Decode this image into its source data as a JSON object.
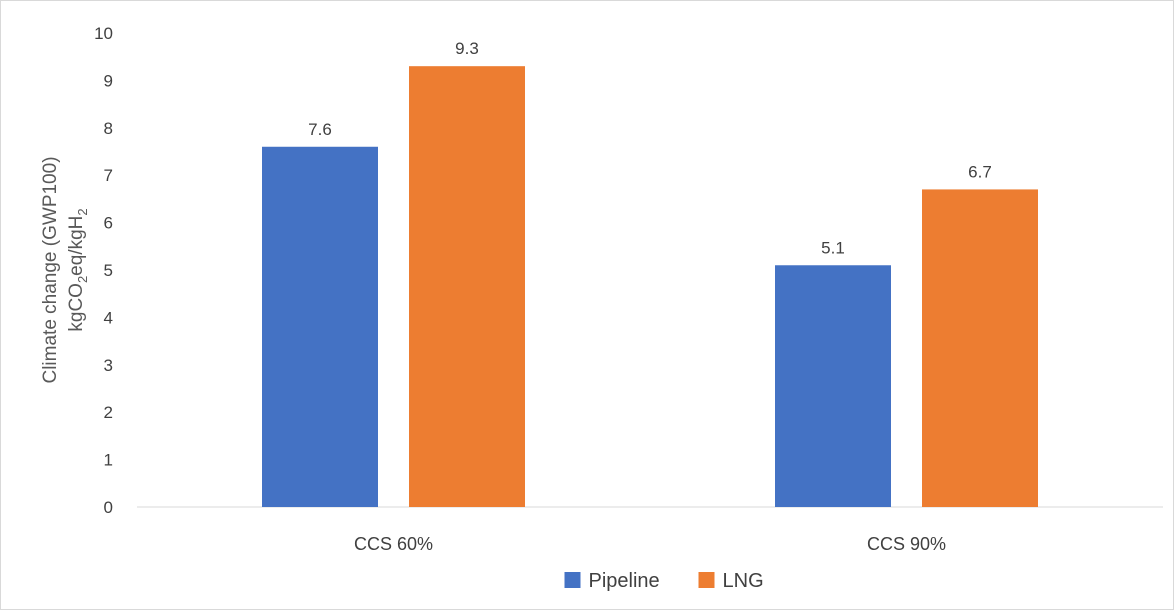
{
  "chart_data": {
    "type": "bar",
    "categories": [
      "CCS 60%",
      "CCS 90%"
    ],
    "series": [
      {
        "name": "Pipeline",
        "values": [
          7.6,
          5.1
        ],
        "labels": [
          "7.6",
          "5.1"
        ],
        "color": "#4472C4"
      },
      {
        "name": "LNG",
        "values": [
          9.3,
          6.7
        ],
        "labels": [
          "9.3",
          "6.7"
        ],
        "color": "#ED7D31"
      }
    ],
    "title": "",
    "xlabel": "",
    "ylabel": {
      "line1": "Climate change (GWP100)",
      "line2": {
        "p1": "kgCO",
        "sub1": "2",
        "p2": "eq/kgH",
        "sub2": "2"
      }
    },
    "ylim": [
      0,
      10
    ],
    "yticks": [
      "0",
      "1",
      "2",
      "3",
      "4",
      "5",
      "6",
      "7",
      "8",
      "9",
      "10"
    ],
    "grid": false,
    "legend_position": "bottom"
  }
}
